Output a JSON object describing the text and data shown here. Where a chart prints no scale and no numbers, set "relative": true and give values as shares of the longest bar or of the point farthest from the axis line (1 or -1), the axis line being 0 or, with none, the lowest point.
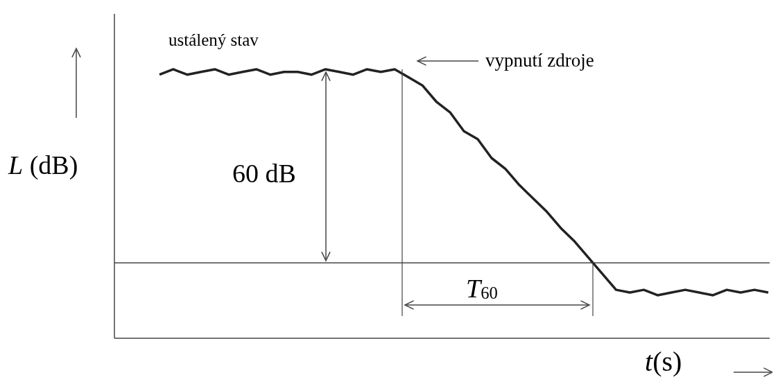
{
  "chart_data": {
    "type": "line",
    "relative": true,
    "xlabel": "t(s)",
    "ylabel": "L (dB)",
    "annotations": [
      "ustálený stav",
      "vypnutí zdroje",
      "60 dB",
      "T$_{60}$"
    ],
    "categories": [
      null,
      null,
      null,
      null,
      null,
      null,
      null,
      null,
      null,
      null,
      null,
      null,
      null,
      null,
      null,
      null,
      null,
      null,
      null,
      null,
      null,
      null,
      null,
      null,
      null,
      null,
      null,
      null,
      null,
      null,
      null,
      null,
      null,
      null,
      null,
      null,
      null,
      null,
      null,
      null,
      null,
      null,
      null,
      null,
      null
    ],
    "series": [
      {
        "color": "#222222",
        "values": [
          0.98,
          1.0,
          0.98,
          0.99,
          1.0,
          0.98,
          0.99,
          1.0,
          0.98,
          0.99,
          0.99,
          0.98,
          1.0,
          0.99,
          0.98,
          1.0,
          0.99,
          1.0,
          0.97,
          0.94,
          0.88,
          0.84,
          0.77,
          0.74,
          0.67,
          0.63,
          0.57,
          0.52,
          0.47,
          0.41,
          0.36,
          0.3,
          0.24,
          0.18,
          0.17,
          0.18,
          0.16,
          0.17,
          0.18,
          0.17,
          0.16,
          0.18,
          0.17,
          0.18,
          0.17
        ]
      }
    ],
    "ref_lines": [
      {
        "axis": "y",
        "value": 0.28,
        "color": "#444444"
      }
    ],
    "grid": false,
    "marker": "none",
    "line_style": "solid"
  }
}
